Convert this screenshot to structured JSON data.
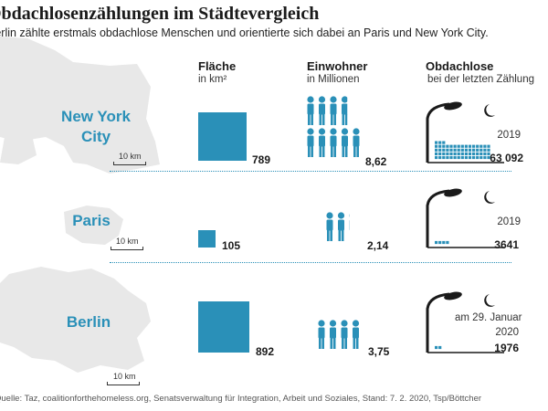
{
  "title": "Obdachlosenzählungen im Städtevergleich",
  "subtitle": "Berlin zählte erstmals obdachlose Menschen und orientierte sich dabei an Paris und New York City.",
  "columns": {
    "area": {
      "label": "Fläche",
      "unit": "in km²"
    },
    "population": {
      "label": "Einwohner",
      "unit": "in Millionen"
    },
    "homeless": {
      "label": "Obdachlose",
      "unit": "bei der letzten Zählung"
    }
  },
  "scale_label": "10 km",
  "source": "Quelle: Taz, coalitionforthehomeless.org, Senatsverwaltung für Integration, Arbeit und Soziales, Stand: 7. 2. 2020, Tsp/Böttcher",
  "colors": {
    "accent": "#2a90b8",
    "map": "#e6e6e6",
    "text": "#1a1a1a"
  },
  "chart_data": {
    "type": "table",
    "categories": [
      "New York City",
      "Paris",
      "Berlin"
    ],
    "rows": [
      {
        "city_line1": "New York",
        "city_line2": "City",
        "area_km2": 789,
        "area_label": "789",
        "population_millions": 8.62,
        "population_label": "8,62",
        "homeless_count": 63092,
        "homeless_label": "63 092",
        "count_date_line1": "2019",
        "count_date_line2": ""
      },
      {
        "city_line1": "Paris",
        "city_line2": "",
        "area_km2": 105,
        "area_label": "105",
        "population_millions": 2.14,
        "population_label": "2,14",
        "homeless_count": 3641,
        "homeless_label": "3641",
        "count_date_line1": "2019",
        "count_date_line2": ""
      },
      {
        "city_line1": "Berlin",
        "city_line2": "",
        "area_km2": 892,
        "area_label": "892",
        "population_millions": 3.75,
        "population_label": "3,75",
        "homeless_count": 1976,
        "homeless_label": "1976",
        "count_date_line1": "am 29. Januar",
        "count_date_line2": "2020"
      }
    ]
  }
}
